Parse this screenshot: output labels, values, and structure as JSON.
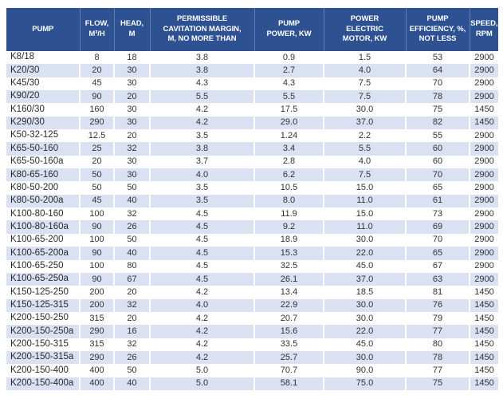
{
  "colors": {
    "header_bg": "#2E5191",
    "header_text": "#FFFFFF",
    "row_alt_bg": "#D9E1F2",
    "row_bg": "#FFFFFF",
    "body_text": "#333333"
  },
  "table": {
    "columns": [
      {
        "id": "pump",
        "label": "PUMP"
      },
      {
        "id": "flow",
        "label": "FLOW,\nM³/H"
      },
      {
        "id": "head",
        "label": "HEAD,\nM"
      },
      {
        "id": "cavitation",
        "label": "PERMISSIBLE\nCAVITATION MARGIN,\nM, NO MORE THAN"
      },
      {
        "id": "pump-power",
        "label": "PUMP\nPOWER, KW"
      },
      {
        "id": "motor-power",
        "label": "POWER\nELECTRIC\nMOTOR, KW"
      },
      {
        "id": "efficiency",
        "label": "PUMP\nEFFICIENCY, %,\nNOT LESS"
      },
      {
        "id": "speed",
        "label": "SPEED,\nRPM"
      }
    ],
    "rows": [
      [
        "K8/18",
        "8",
        "18",
        "3.8",
        "0.9",
        "1.5",
        "53",
        "2900"
      ],
      [
        "K20/30",
        "20",
        "30",
        "3.8",
        "2.7",
        "4.0",
        "64",
        "2900"
      ],
      [
        "K45/30",
        "45",
        "30",
        "4.3",
        "4.3",
        "7.5",
        "70",
        "2900"
      ],
      [
        "K90/20",
        "90",
        "20",
        "5.5",
        "5.5",
        "7.5",
        "78",
        "2900"
      ],
      [
        "K160/30",
        "160",
        "30",
        "4.2",
        "17.5",
        "30.0",
        "75",
        "1450"
      ],
      [
        "K290/30",
        "290",
        "30",
        "4.2",
        "29.0",
        "37.0",
        "82",
        "1450"
      ],
      [
        "K50-32-125",
        "12.5",
        "20",
        "3.5",
        "1.24",
        "2.2",
        "55",
        "2900"
      ],
      [
        "K65-50-160",
        "25",
        "32",
        "3.8",
        "3.4",
        "5.5",
        "60",
        "2900"
      ],
      [
        "K65-50-160a",
        "20",
        "30",
        "3.7",
        "2.8",
        "4.0",
        "60",
        "2900"
      ],
      [
        "K80-65-160",
        "50",
        "30",
        "4.0",
        "6.2",
        "7.5",
        "70",
        "2900"
      ],
      [
        "K80-50-200",
        "50",
        "50",
        "3.5",
        "10.5",
        "15.0",
        "65",
        "2900"
      ],
      [
        "K80-50-200a",
        "45",
        "40",
        "3.5",
        "8.0",
        "11.0",
        "61",
        "2900"
      ],
      [
        "K100-80-160",
        "100",
        "32",
        "4.5",
        "11.9",
        "15.0",
        "73",
        "2900"
      ],
      [
        "K100-80-160a",
        "90",
        "26",
        "4.5",
        "9.2",
        "11.0",
        "69",
        "2900"
      ],
      [
        "K100-65-200",
        "100",
        "50",
        "4.5",
        "18.9",
        "30.0",
        "70",
        "2900"
      ],
      [
        "K100-65-200a",
        "90",
        "40",
        "4.5",
        "15.3",
        "22.0",
        "65",
        "2900"
      ],
      [
        "K100-65-250",
        "100",
        "80",
        "4.5",
        "32.5",
        "45.0",
        "67",
        "2900"
      ],
      [
        "K100-65-250a",
        "90",
        "67",
        "4.5",
        "26.1",
        "37.0",
        "63",
        "2900"
      ],
      [
        "K150-125-250",
        "200",
        "20",
        "4.2",
        "13.4",
        "18.5",
        "81",
        "1450"
      ],
      [
        "K150-125-315",
        "200",
        "32",
        "4.0",
        "22.9",
        "30.0",
        "76",
        "1450"
      ],
      [
        "K200-150-250",
        "315",
        "20",
        "4.2",
        "20.7",
        "30.0",
        "79",
        "1450"
      ],
      [
        "K200-150-250a",
        "290",
        "16",
        "4.2",
        "15.6",
        "22.0",
        "77",
        "1450"
      ],
      [
        "K200-150-315",
        "315",
        "32",
        "4.2",
        "33.5",
        "45.0",
        "80",
        "1450"
      ],
      [
        "K200-150-315a",
        "290",
        "26",
        "4.2",
        "25.7",
        "30.0",
        "78",
        "1450"
      ],
      [
        "K200-150-400",
        "400",
        "50",
        "5.0",
        "70.7",
        "90.0",
        "77",
        "1450"
      ],
      [
        "K200-150-400a",
        "400",
        "40",
        "5.0",
        "58.1",
        "75.0",
        "75",
        "1450"
      ]
    ]
  }
}
